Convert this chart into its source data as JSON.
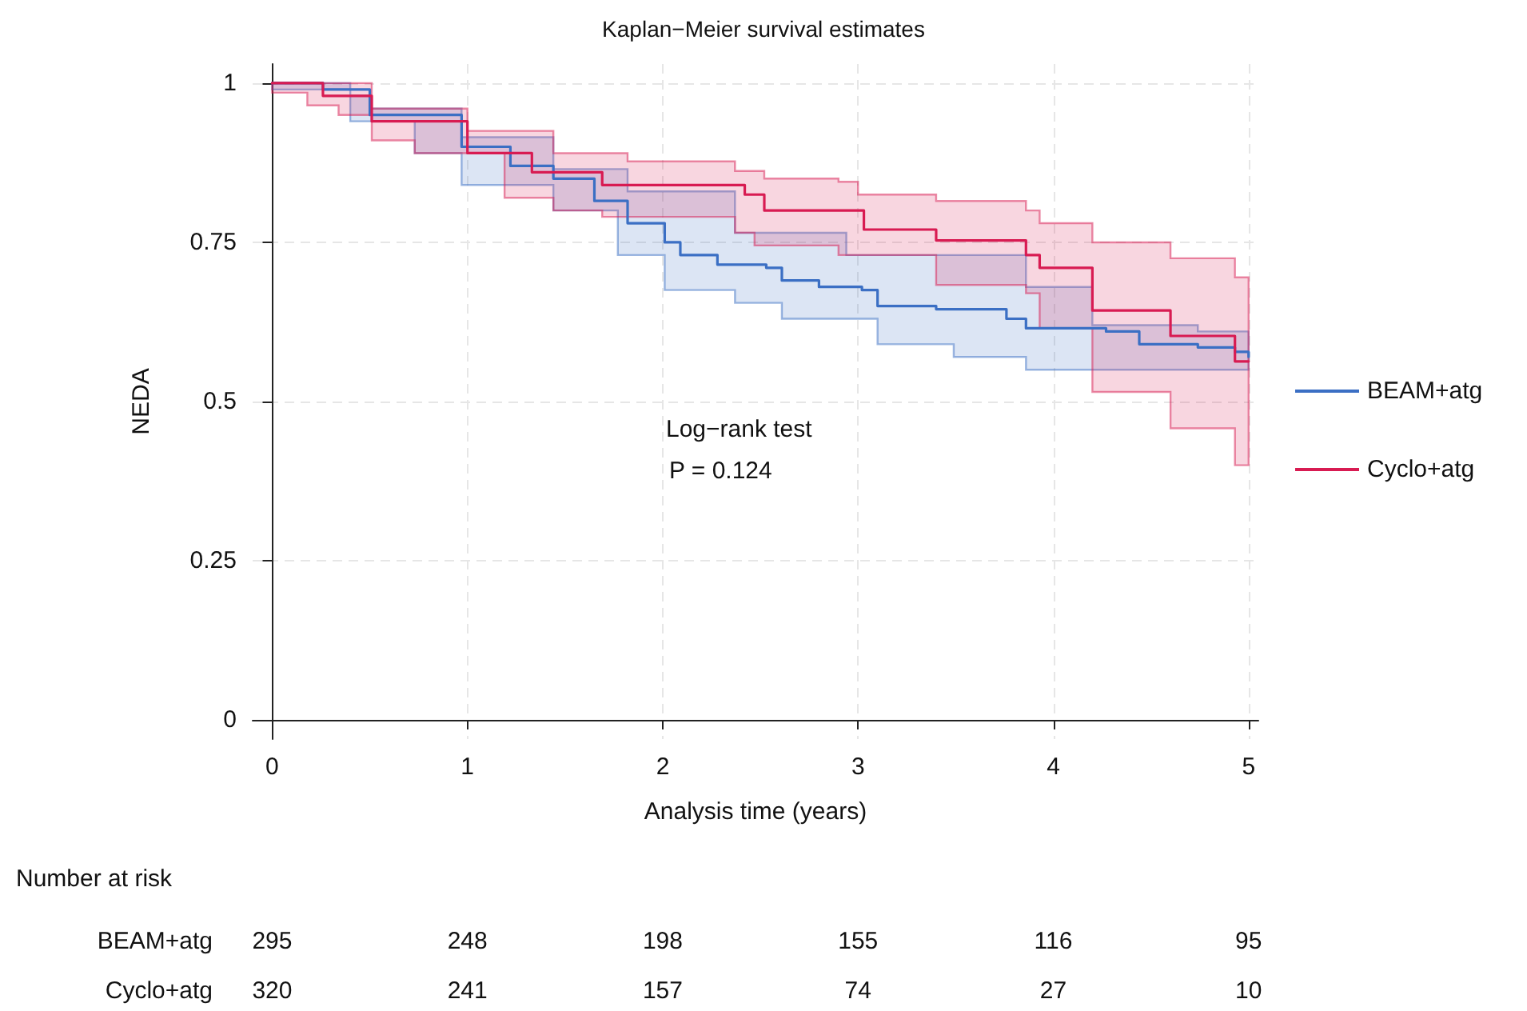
{
  "chart_data": {
    "type": "step",
    "title": "Kaplan−Meier survival estimates",
    "xlabel": "Analysis time (years)",
    "ylabel": "NEDA",
    "xlim": [
      -0.1,
      5.05
    ],
    "xticks": [
      0,
      1,
      2,
      3,
      4,
      5
    ],
    "ylim": [
      -0.03,
      1.03
    ],
    "yticks": [
      0,
      0.25,
      0.5,
      0.75,
      1
    ],
    "grid": true,
    "legend": "right",
    "marker": "none",
    "line_style": "solid",
    "series": [
      {
        "name": "BEAM+atg",
        "color": "#3b6fc4",
        "x": [
          0,
          0.26,
          0.4,
          0.5,
          0.73,
          0.97,
          1.22,
          1.44,
          1.65,
          1.77,
          1.82,
          2.01,
          2.09,
          2.28,
          2.37,
          2.53,
          2.61,
          2.8,
          2.94,
          3.02,
          3.1,
          3.4,
          3.49,
          3.76,
          3.86,
          4.2,
          4.27,
          4.44,
          4.74,
          4.93,
          5.0
        ],
        "values": [
          1,
          0.99,
          0.99,
          0.95,
          0.95,
          0.9,
          0.87,
          0.85,
          0.815,
          0.815,
          0.78,
          0.75,
          0.73,
          0.715,
          0.715,
          0.71,
          0.69,
          0.68,
          0.68,
          0.675,
          0.65,
          0.645,
          0.645,
          0.63,
          0.615,
          0.615,
          0.61,
          0.59,
          0.585,
          0.578,
          0.57
        ],
        "upper": [
          1,
          1,
          0.98,
          0.96,
          0.96,
          0.915,
          0.915,
          0.865,
          0.865,
          0.865,
          0.83,
          0.83,
          0.83,
          0.83,
          0.765,
          0.765,
          0.765,
          0.765,
          0.73,
          0.73,
          0.73,
          0.73,
          0.73,
          0.73,
          0.68,
          0.62,
          0.62,
          0.62,
          0.61,
          0.61,
          0.6
        ],
        "lower": [
          0.99,
          0.99,
          0.94,
          0.94,
          0.89,
          0.84,
          0.84,
          0.8,
          0.8,
          0.73,
          0.73,
          0.675,
          0.675,
          0.675,
          0.655,
          0.655,
          0.63,
          0.63,
          0.63,
          0.63,
          0.59,
          0.59,
          0.57,
          0.57,
          0.55,
          0.55,
          0.55,
          0.55,
          0.55,
          0.55,
          0.55
        ]
      },
      {
        "name": "Cyclo+atg",
        "color": "#d81b52",
        "x": [
          0,
          0.18,
          0.26,
          0.34,
          0.51,
          0.73,
          1.0,
          1.19,
          1.33,
          1.44,
          1.69,
          1.82,
          2.37,
          2.42,
          2.47,
          2.52,
          2.9,
          3.0,
          3.03,
          3.4,
          3.86,
          3.93,
          4.2,
          4.6,
          4.93,
          5.0
        ],
        "values": [
          1,
          1,
          0.98,
          0.98,
          0.94,
          0.94,
          0.89,
          0.89,
          0.86,
          0.86,
          0.84,
          0.84,
          0.84,
          0.825,
          0.825,
          0.8,
          0.8,
          0.8,
          0.77,
          0.753,
          0.73,
          0.71,
          0.643,
          0.603,
          0.563,
          0.563
        ],
        "upper": [
          1,
          1,
          1,
          1,
          0.96,
          0.96,
          0.925,
          0.925,
          0.925,
          0.89,
          0.89,
          0.877,
          0.862,
          0.862,
          0.862,
          0.85,
          0.845,
          0.825,
          0.825,
          0.815,
          0.8,
          0.78,
          0.75,
          0.725,
          0.695,
          0.695
        ],
        "lower": [
          0.985,
          0.965,
          0.965,
          0.95,
          0.91,
          0.89,
          0.89,
          0.82,
          0.82,
          0.8,
          0.79,
          0.79,
          0.765,
          0.765,
          0.745,
          0.745,
          0.73,
          0.73,
          0.73,
          0.683,
          0.67,
          0.615,
          0.515,
          0.458,
          0.4,
          0.4
        ]
      }
    ],
    "annotations": [
      "Log−rank test",
      "P = 0.124",
      "Number at risk",
      "BEAM+atg",
      "295",
      "248",
      "198",
      "155",
      "116",
      "95",
      "Cyclo+atg",
      "320",
      "241",
      "157",
      "74",
      "27",
      "10"
    ]
  }
}
